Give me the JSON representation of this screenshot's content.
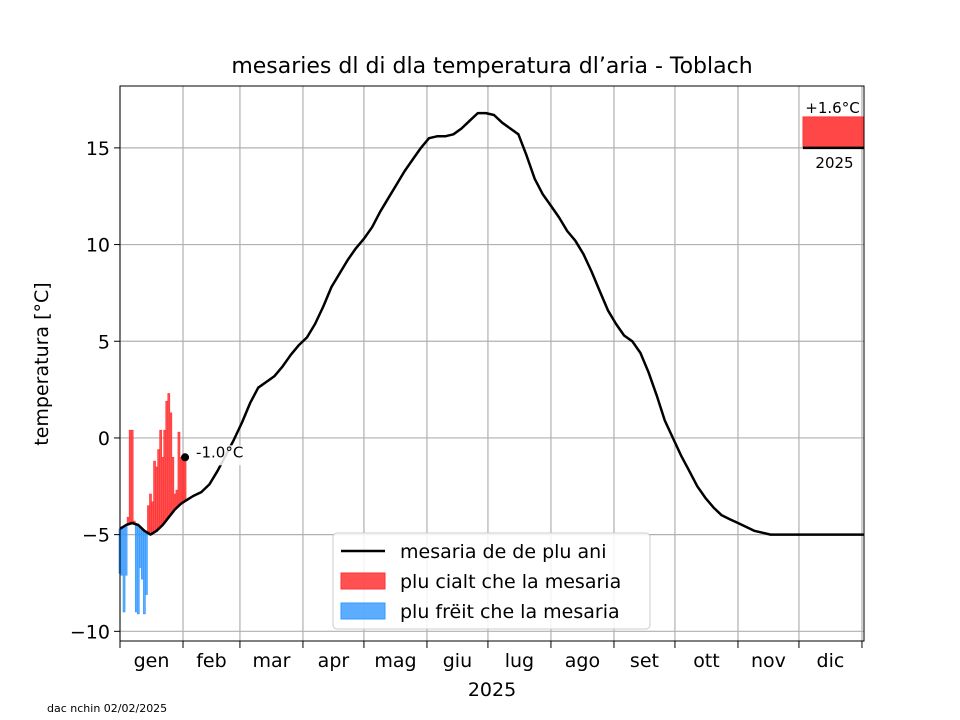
{
  "chart_data": {
    "type": "line",
    "title": "mesaries dl di dla temperatura dl’aria - Toblach",
    "xlabel": "2025",
    "ylabel": "temperatura [°C]",
    "xlim": [
      0,
      366
    ],
    "ylim": [
      -10.5,
      18.2
    ],
    "yticks": [
      -10,
      -5,
      0,
      5,
      10,
      15
    ],
    "month_starts": [
      0,
      31,
      59,
      90,
      120,
      151,
      181,
      212,
      243,
      273,
      304,
      334,
      365
    ],
    "month_labels": [
      "gen",
      "feb",
      "mar",
      "apr",
      "mag",
      "giu",
      "lug",
      "ago",
      "set",
      "ott",
      "nov",
      "dic"
    ],
    "grid": true,
    "legend": {
      "placement": "lower-center",
      "entries": {
        "mean": "mesaria de de plu ani",
        "warmer": "plu cialt che la mesaria",
        "colder": "plu frëit che la mesaria"
      }
    },
    "colors": {
      "mean": "#000000",
      "warmer": "#ff3333",
      "colder": "#3399ff"
    },
    "series": [
      {
        "name": "mesaria de de plu ani",
        "x": [
          0,
          3,
          6,
          9,
          12,
          15,
          18,
          21,
          24,
          27,
          30,
          33,
          36,
          40,
          44,
          48,
          52,
          56,
          60,
          64,
          68,
          72,
          76,
          80,
          84,
          88,
          92,
          96,
          100,
          104,
          108,
          112,
          116,
          120,
          124,
          128,
          132,
          136,
          140,
          144,
          148,
          152,
          156,
          160,
          164,
          168,
          172,
          176,
          180,
          184,
          188,
          192,
          196,
          200,
          204,
          208,
          212,
          216,
          220,
          224,
          228,
          232,
          236,
          240,
          244,
          248,
          252,
          256,
          260,
          264,
          268,
          272,
          276,
          280,
          284,
          288,
          292,
          296,
          300,
          304,
          308,
          312,
          316,
          320,
          324,
          328,
          332,
          336,
          340,
          344,
          348,
          352,
          356,
          360,
          364,
          366
        ],
        "y": [
          -4.7,
          -4.5,
          -4.4,
          -4.5,
          -4.8,
          -5.0,
          -4.8,
          -4.5,
          -4.1,
          -3.7,
          -3.4,
          -3.2,
          -3.0,
          -2.8,
          -2.4,
          -1.7,
          -0.9,
          -0.1,
          0.8,
          1.8,
          2.6,
          2.9,
          3.2,
          3.7,
          4.3,
          4.8,
          5.2,
          5.9,
          6.8,
          7.8,
          8.5,
          9.2,
          9.8,
          10.3,
          10.9,
          11.7,
          12.4,
          13.1,
          13.8,
          14.4,
          15.0,
          15.5,
          15.6,
          15.6,
          15.7,
          16.0,
          16.4,
          16.8,
          16.8,
          16.7,
          16.3,
          16.0,
          15.7,
          14.6,
          13.4,
          12.6,
          12.0,
          11.4,
          10.7,
          10.2,
          9.5,
          8.6,
          7.6,
          6.6,
          5.9,
          5.3,
          5.0,
          4.4,
          3.4,
          2.2,
          0.9,
          0.0,
          -0.9,
          -1.7,
          -2.5,
          -3.1,
          -3.6,
          -4.0,
          -4.2,
          -4.4,
          -4.6,
          -4.8,
          -4.9,
          -5.0,
          -5.0,
          -5.0,
          -5.0,
          -5.0,
          -5.0,
          -5.0,
          -5.0,
          -5.0,
          -5.0,
          -5.0,
          -5.0,
          -5.0
        ]
      },
      {
        "name": "2025",
        "x": [
          0,
          1,
          2,
          3,
          4,
          5,
          6,
          7,
          8,
          9,
          10,
          11,
          12,
          13,
          14,
          15,
          16,
          17,
          18,
          19,
          20,
          21,
          22,
          23,
          24,
          25,
          26,
          27,
          28,
          29,
          30,
          31,
          32
        ],
        "y": [
          -7.0,
          -7.1,
          -9.0,
          -7.1,
          -4.1,
          0.4,
          0.4,
          -4.3,
          -9.0,
          -9.1,
          -6.7,
          -7.3,
          -9.1,
          -8.1,
          -3.5,
          -2.9,
          -3.3,
          -1.2,
          -1.5,
          -0.6,
          0.4,
          -1.0,
          0.4,
          1.9,
          2.3,
          1.3,
          -1.0,
          -2.9,
          -2.7,
          0.3,
          -1.0,
          -1.0,
          -1.0
        ]
      }
    ],
    "annotations": {
      "last_value_label": "-1.0°C",
      "last_value": {
        "x": 32,
        "y": -1.0
      },
      "annual_box": {
        "anomaly_label": "+1.6°C",
        "anomaly": 1.6,
        "year_label": "2025",
        "baseline": 15.0
      }
    }
  },
  "footer": {
    "credit": "dac nchin 02/02/2025"
  }
}
